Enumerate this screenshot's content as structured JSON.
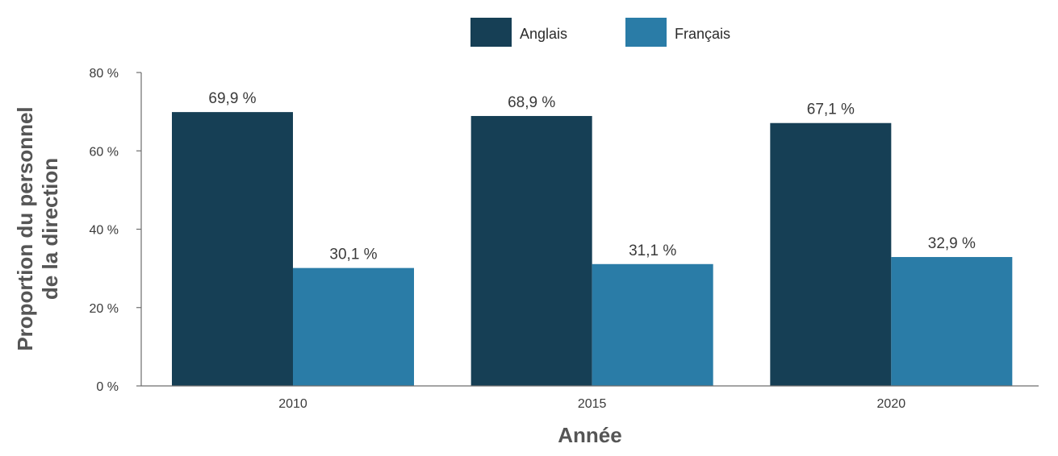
{
  "chart_data": {
    "type": "bar",
    "categories": [
      "2010",
      "2015",
      "2020"
    ],
    "series": [
      {
        "name": "Anglais",
        "color": "#163f55",
        "values": [
          69.9,
          68.9,
          67.1
        ],
        "labels": [
          "69,9 %",
          "68,9 %",
          "67,1 %"
        ]
      },
      {
        "name": "Français",
        "color": "#2a7ca7",
        "values": [
          30.1,
          31.1,
          32.9
        ],
        "labels": [
          "30,1 %",
          "31,1 %",
          "32,9 %"
        ]
      }
    ],
    "xlabel": "Année",
    "ylabel_lines": [
      "Proportion du personnel",
      "de la direction"
    ],
    "ylim": [
      0,
      80
    ],
    "yticks": [
      0,
      20,
      40,
      60,
      80
    ],
    "ytick_labels": [
      "0 %",
      "20 %",
      "40 %",
      "60 %",
      "80 %"
    ],
    "legend_position": "top-center",
    "grid": false
  }
}
